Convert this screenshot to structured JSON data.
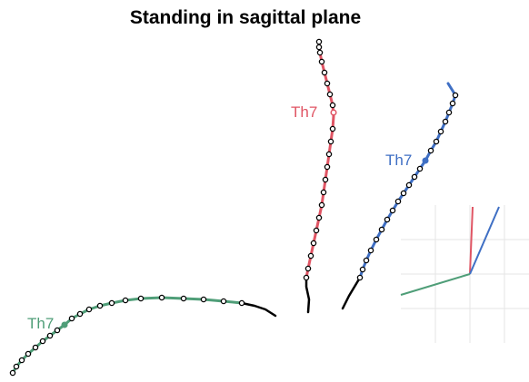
{
  "title": "Standing in sagittal plane",
  "labels": {
    "red": "Th7",
    "blue": "Th7",
    "green": "Th7"
  },
  "colors": {
    "red": "#e05564",
    "blue": "#3f6fc4",
    "green": "#4f9e78",
    "black": "#000000",
    "grid": "#e6e6e6"
  }
}
